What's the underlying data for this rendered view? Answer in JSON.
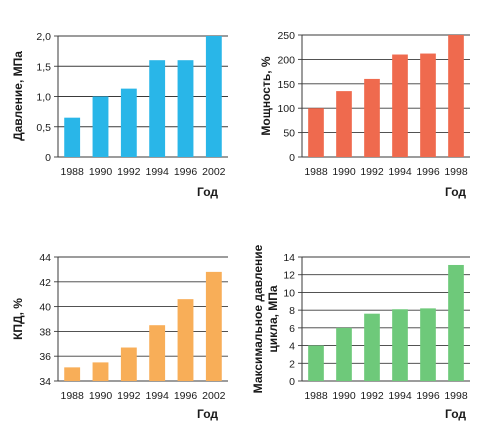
{
  "chart_data": [
    {
      "type": "bar",
      "color": "#29b6e8",
      "categories": [
        "1988",
        "1990",
        "1992",
        "1994",
        "1996",
        "2002"
      ],
      "values": [
        0.65,
        1.0,
        1.13,
        1.6,
        1.6,
        2.0
      ],
      "ylabel": "Давление, МПа",
      "xlabel": "Год",
      "ylim": [
        0,
        2.0
      ],
      "yticks": [
        "0",
        "0,5",
        "1,0",
        "1,5",
        "2,0"
      ],
      "ytick_values": [
        0,
        0.5,
        1.0,
        1.5,
        2.0
      ],
      "grid": true
    },
    {
      "type": "bar",
      "color": "#ef6a4e",
      "categories": [
        "1988",
        "1990",
        "1992",
        "1994",
        "1996",
        "1998"
      ],
      "values": [
        100,
        135,
        160,
        210,
        212,
        250
      ],
      "ylabel": "Мощность, %",
      "xlabel": "Год",
      "ylim": [
        0,
        250
      ],
      "yticks": [
        "0",
        "50",
        "100",
        "150",
        "200",
        "250"
      ],
      "ytick_values": [
        0,
        50,
        100,
        150,
        200,
        250
      ],
      "grid": true
    },
    {
      "type": "bar",
      "color": "#f8ae58",
      "categories": [
        "1988",
        "1990",
        "1992",
        "1994",
        "1996",
        "2002"
      ],
      "values": [
        35.1,
        35.5,
        36.7,
        38.5,
        40.6,
        42.8
      ],
      "ylabel": "КПД, %",
      "xlabel": "Год",
      "ylim": [
        34,
        44
      ],
      "yticks": [
        "34",
        "36",
        "38",
        "40",
        "42",
        "44"
      ],
      "ytick_values": [
        34,
        36,
        38,
        40,
        42,
        44
      ],
      "grid": true
    },
    {
      "type": "bar",
      "color": "#6ec97a",
      "categories": [
        "1988",
        "1990",
        "1992",
        "1994",
        "1996",
        "1998"
      ],
      "values": [
        4.0,
        6.0,
        7.6,
        8.1,
        8.2,
        13.1
      ],
      "ylabel": "Максимальное давление цикла, МПа",
      "ylabel_lines": [
        "Максимальное давление",
        "цикла, МПа"
      ],
      "xlabel": "Год",
      "ylim": [
        0,
        14
      ],
      "yticks": [
        "0",
        "2",
        "4",
        "6",
        "8",
        "10",
        "12",
        "14"
      ],
      "ytick_values": [
        0,
        2,
        4,
        6,
        8,
        10,
        12,
        14
      ],
      "grid": true
    }
  ]
}
